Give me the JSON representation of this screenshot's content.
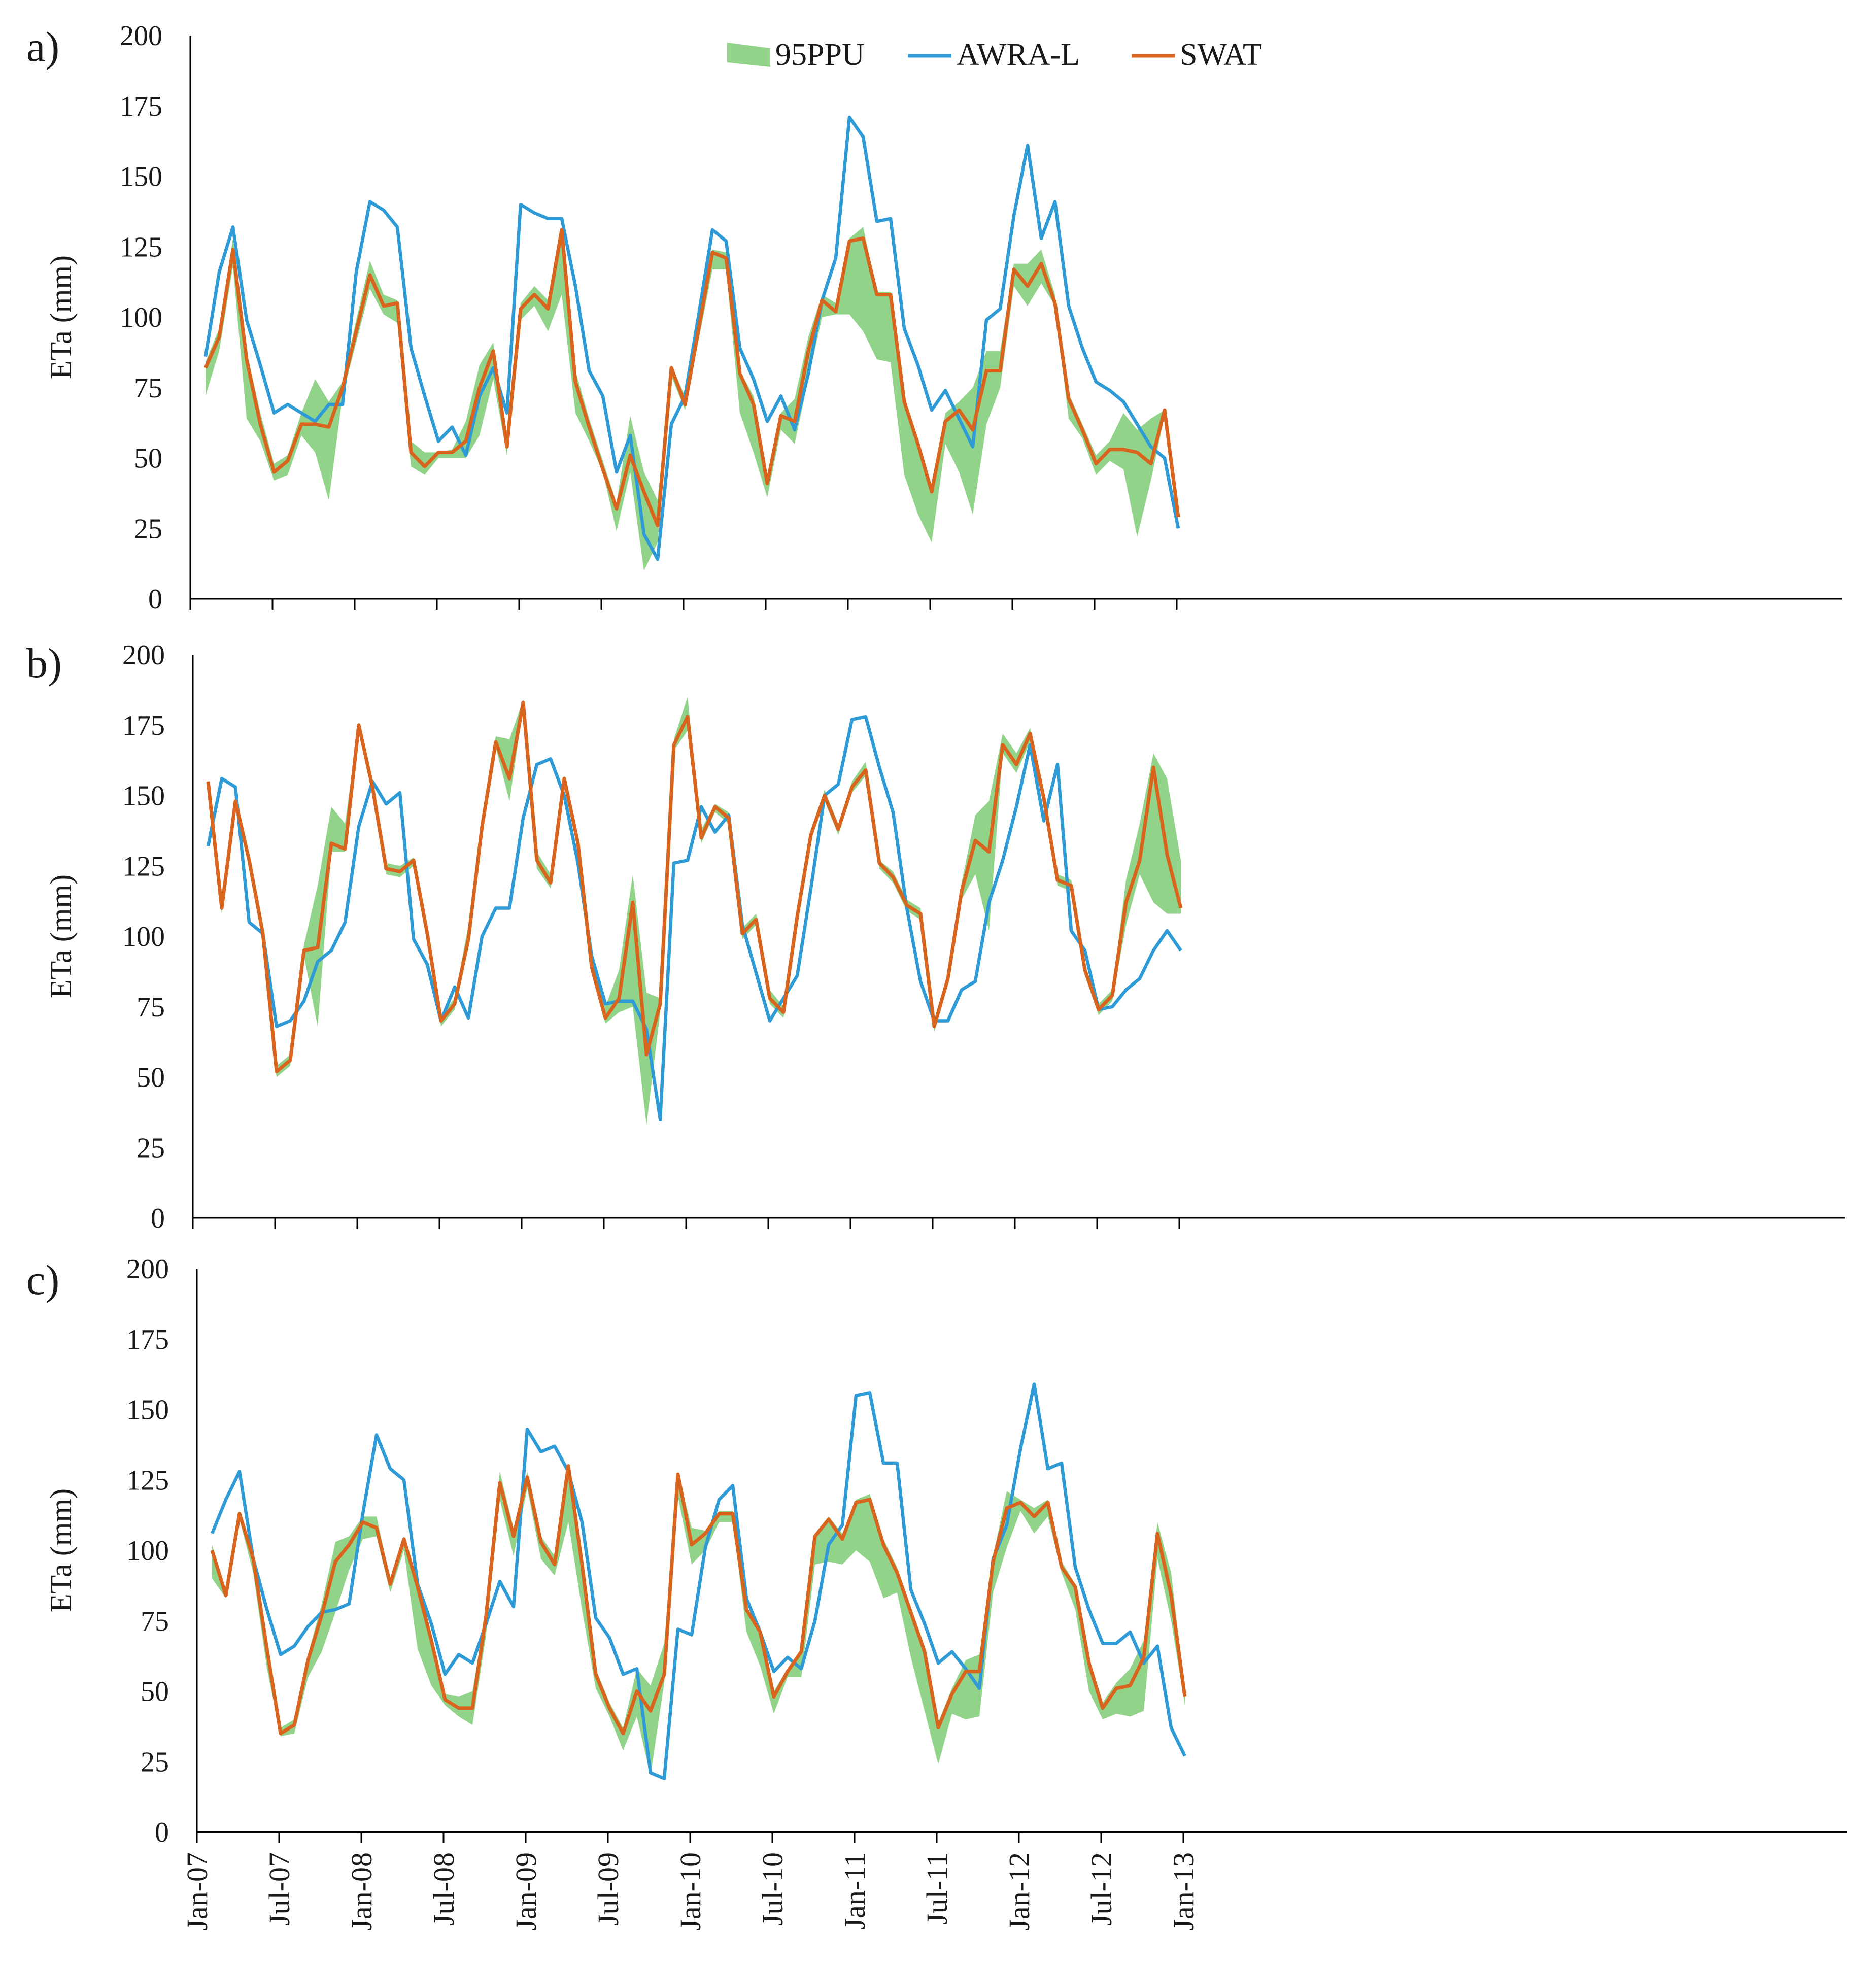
{
  "chart_data": {
    "type": "line",
    "colors": {
      "band": "#92D38A",
      "awra": "#2E9BD6",
      "swat": "#D9641E",
      "axis": "#000000"
    },
    "legend": {
      "placement": "top-center",
      "items": [
        "95PPU",
        "AWRA-L",
        "SWAT"
      ]
    },
    "x": {
      "start": "Jan-07",
      "n_months": 72,
      "ticks": [
        "Jan-07",
        "Jul-07",
        "Jan-08",
        "Jul-08",
        "Jan-09",
        "Jul-09",
        "Jan-10",
        "Jul-10",
        "Jan-11",
        "Jul-11",
        "Jan-12",
        "Jul-12",
        "Jan-13"
      ],
      "tick_every_months": 6
    },
    "ylabel": "ETa (mm)",
    "ylim": [
      0,
      200
    ],
    "yticks": [
      "0",
      "25",
      "50",
      "75",
      "100",
      "125",
      "150",
      "175",
      "200"
    ],
    "panels": [
      {
        "label": "a)",
        "awra": [
          86,
          116,
          132,
          99,
          83,
          66,
          69,
          66,
          63,
          69,
          69,
          116,
          141,
          138,
          132,
          89,
          72,
          56,
          61,
          51,
          72,
          82,
          66,
          140,
          137,
          135,
          135,
          111,
          81,
          72,
          45,
          58,
          23,
          14,
          62,
          72,
          101,
          131,
          127,
          89,
          78,
          63,
          72,
          60,
          80,
          106,
          121,
          171,
          164,
          134,
          135,
          96,
          83,
          67,
          74,
          64,
          54,
          99,
          103,
          136,
          161,
          128,
          141,
          104,
          89,
          77,
          74,
          70,
          62,
          54,
          50,
          25
        ],
        "swat": [
          82,
          93,
          124,
          85,
          62,
          45,
          49,
          62,
          62,
          61,
          75,
          95,
          115,
          104,
          105,
          52,
          47,
          52,
          52,
          56,
          75,
          88,
          54,
          103,
          108,
          103,
          131,
          77,
          61,
          46,
          32,
          51,
          38,
          26,
          82,
          69,
          96,
          123,
          121,
          80,
          69,
          41,
          65,
          63,
          88,
          106,
          102,
          127,
          128,
          108,
          108,
          70,
          55,
          38,
          63,
          67,
          60,
          81,
          81,
          117,
          111,
          119,
          105,
          71,
          60,
          48,
          53,
          53,
          52,
          48,
          67,
          29
        ],
        "band_upper": [
          84,
          96,
          128,
          88,
          66,
          48,
          51,
          66,
          78,
          70,
          77,
          99,
          120,
          108,
          106,
          56,
          52,
          52,
          53,
          63,
          83,
          91,
          56,
          105,
          111,
          106,
          131,
          81,
          64,
          49,
          34,
          65,
          45,
          35,
          83,
          72,
          99,
          124,
          123,
          81,
          72,
          44,
          66,
          71,
          93,
          108,
          105,
          128,
          132,
          109,
          109,
          71,
          57,
          39,
          66,
          70,
          75,
          88,
          88,
          119,
          119,
          124,
          108,
          73,
          62,
          51,
          56,
          66,
          60,
          64,
          67,
          31
        ],
        "band_lower": [
          72,
          88,
          118,
          64,
          56,
          42,
          44,
          58,
          52,
          35,
          72,
          91,
          110,
          101,
          98,
          47,
          44,
          50,
          50,
          50,
          58,
          78,
          51,
          99,
          104,
          95,
          108,
          66,
          56,
          45,
          24,
          45,
          10,
          20,
          79,
          67,
          92,
          117,
          117,
          66,
          52,
          36,
          60,
          55,
          78,
          100,
          101,
          101,
          95,
          85,
          84,
          44,
          30,
          20,
          55,
          45,
          30,
          62,
          75,
          111,
          104,
          112,
          104,
          64,
          57,
          44,
          49,
          46,
          22,
          42,
          65,
          28
        ]
      },
      {
        "label": "b)",
        "awra": [
          132,
          156,
          153,
          105,
          101,
          68,
          70,
          77,
          91,
          95,
          105,
          139,
          155,
          147,
          151,
          99,
          90,
          70,
          82,
          71,
          100,
          110,
          110,
          142,
          161,
          163,
          150,
          126,
          93,
          76,
          77,
          77,
          67,
          35,
          126,
          127,
          146,
          137,
          143,
          104,
          87,
          70,
          78,
          86,
          117,
          150,
          154,
          177,
          178,
          160,
          144,
          110,
          84,
          70,
          70,
          81,
          84,
          112,
          127,
          146,
          168,
          141,
          161,
          102,
          95,
          74,
          75,
          81,
          85,
          95,
          102,
          95
        ],
        "swat": [
          155,
          110,
          148,
          127,
          101,
          52,
          56,
          95,
          96,
          133,
          131,
          175,
          153,
          124,
          123,
          127,
          101,
          70,
          76,
          99,
          139,
          169,
          156,
          183,
          127,
          119,
          156,
          133,
          89,
          71,
          78,
          112,
          58,
          76,
          168,
          178,
          135,
          146,
          142,
          101,
          106,
          78,
          73,
          107,
          136,
          150,
          138,
          153,
          159,
          126,
          121,
          111,
          108,
          68,
          85,
          116,
          134,
          130,
          168,
          161,
          172,
          149,
          120,
          118,
          88,
          74,
          79,
          112,
          127,
          160,
          129,
          110
        ],
        "band_upper": [
          155,
          112,
          149,
          128,
          103,
          54,
          58,
          97,
          118,
          146,
          140,
          176,
          155,
          126,
          125,
          128,
          103,
          72,
          78,
          104,
          141,
          171,
          170,
          184,
          130,
          122,
          157,
          135,
          91,
          75,
          88,
          122,
          80,
          78,
          170,
          185,
          138,
          147,
          144,
          103,
          108,
          81,
          75,
          108,
          138,
          152,
          140,
          155,
          162,
          127,
          123,
          113,
          110,
          70,
          87,
          119,
          143,
          148,
          172,
          165,
          174,
          151,
          122,
          120,
          90,
          76,
          81,
          120,
          140,
          165,
          156,
          127
        ],
        "band_lower": [
          153,
          108,
          146,
          125,
          99,
          50,
          54,
          93,
          68,
          130,
          130,
          173,
          151,
          122,
          121,
          125,
          99,
          68,
          74,
          97,
          137,
          167,
          148,
          181,
          124,
          117,
          154,
          131,
          87,
          69,
          73,
          75,
          33,
          73,
          166,
          173,
          133,
          144,
          140,
          99,
          104,
          76,
          71,
          105,
          134,
          148,
          136,
          151,
          157,
          124,
          119,
          109,
          106,
          66,
          83,
          113,
          122,
          102,
          165,
          158,
          169,
          147,
          118,
          116,
          86,
          72,
          77,
          104,
          122,
          112,
          108,
          108
        ]
      },
      {
        "label": "c)",
        "awra": [
          106,
          118,
          128,
          97,
          79,
          63,
          66,
          73,
          78,
          79,
          81,
          113,
          141,
          129,
          125,
          88,
          74,
          56,
          63,
          60,
          74,
          89,
          80,
          143,
          135,
          137,
          128,
          110,
          76,
          69,
          56,
          58,
          21,
          19,
          72,
          70,
          101,
          118,
          123,
          83,
          71,
          57,
          62,
          58,
          75,
          102,
          109,
          155,
          156,
          131,
          131,
          86,
          74,
          60,
          64,
          58,
          51,
          97,
          109,
          136,
          159,
          129,
          131,
          94,
          79,
          67,
          67,
          71,
          60,
          66,
          37,
          27
        ],
        "swat": [
          100,
          84,
          113,
          97,
          65,
          35,
          38,
          61,
          77,
          96,
          102,
          110,
          108,
          88,
          104,
          87,
          68,
          47,
          44,
          44,
          77,
          124,
          105,
          126,
          103,
          95,
          130,
          95,
          56,
          44,
          35,
          50,
          43,
          56,
          127,
          102,
          106,
          113,
          113,
          79,
          71,
          48,
          57,
          64,
          105,
          111,
          104,
          117,
          118,
          102,
          92,
          78,
          64,
          37,
          49,
          57,
          57,
          96,
          115,
          117,
          112,
          117,
          94,
          87,
          60,
          44,
          51,
          52,
          62,
          106,
          84,
          48
        ],
        "band_upper": [
          102,
          86,
          114,
          99,
          67,
          37,
          40,
          63,
          81,
          103,
          105,
          112,
          112,
          90,
          105,
          89,
          70,
          49,
          48,
          50,
          79,
          128,
          108,
          128,
          105,
          98,
          130,
          97,
          58,
          46,
          37,
          58,
          52,
          67,
          128,
          108,
          107,
          114,
          114,
          80,
          73,
          50,
          58,
          65,
          106,
          112,
          106,
          118,
          120,
          104,
          94,
          80,
          66,
          39,
          51,
          61,
          63,
          98,
          121,
          118,
          115,
          118,
          96,
          88,
          62,
          46,
          53,
          58,
          68,
          110,
          92,
          50
        ],
        "band_lower": [
          90,
          83,
          111,
          92,
          58,
          34,
          35,
          55,
          64,
          78,
          93,
          104,
          105,
          85,
          100,
          65,
          52,
          45,
          41,
          38,
          70,
          118,
          98,
          122,
          97,
          91,
          110,
          79,
          51,
          41,
          29,
          41,
          20,
          53,
          119,
          95,
          100,
          110,
          110,
          71,
          59,
          42,
          55,
          55,
          95,
          96,
          95,
          100,
          96,
          83,
          85,
          62,
          43,
          24,
          42,
          40,
          41,
          85,
          101,
          114,
          106,
          112,
          92,
          79,
          50,
          40,
          42,
          41,
          43,
          97,
          75,
          45
        ]
      }
    ]
  }
}
